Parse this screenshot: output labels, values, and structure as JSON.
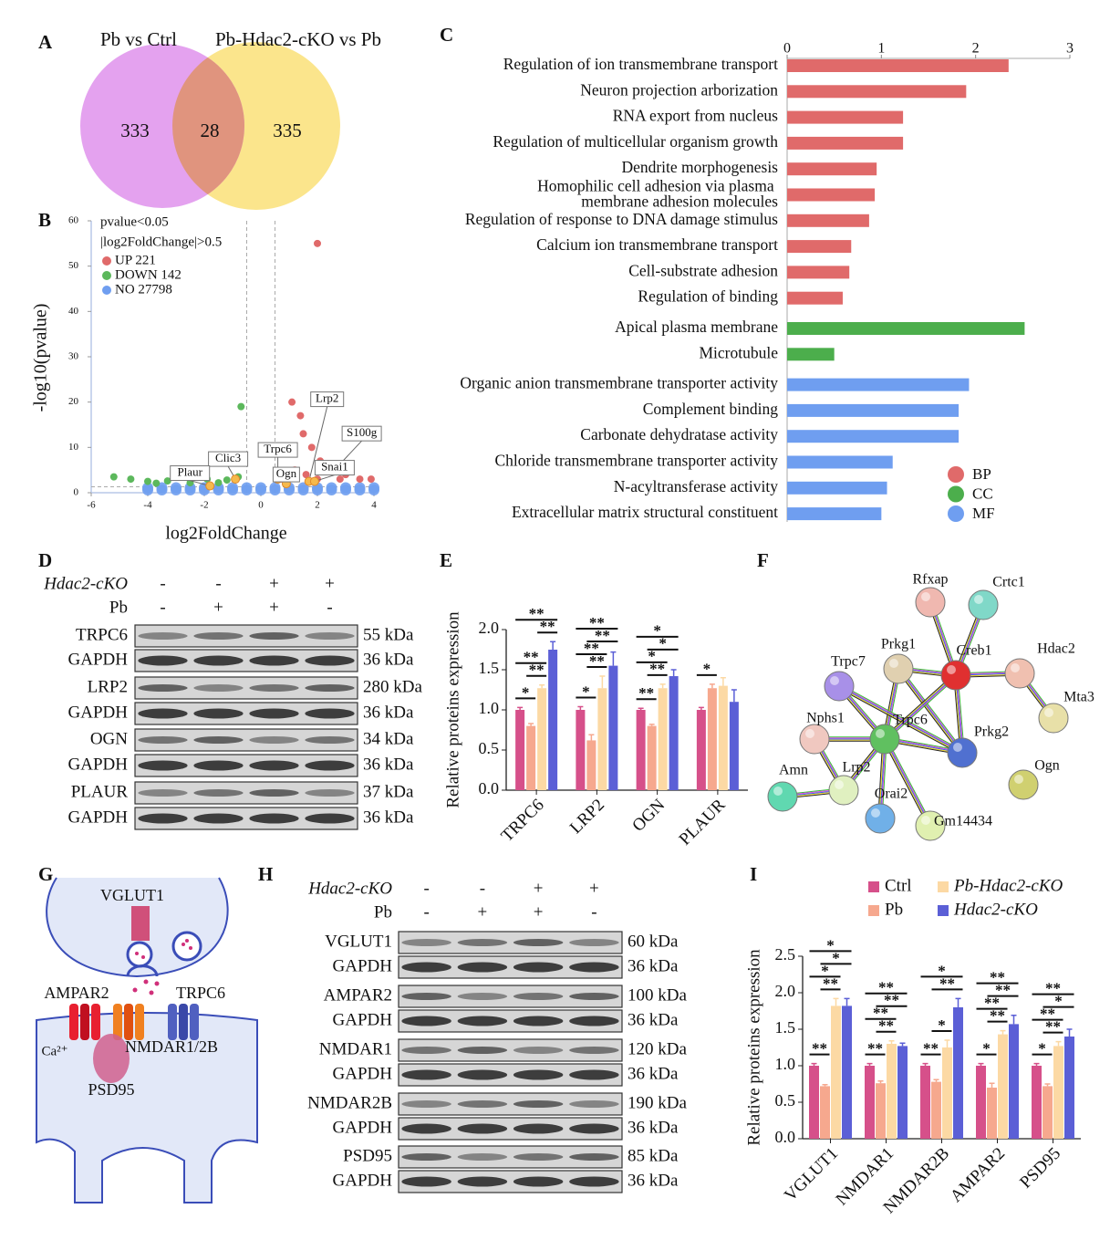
{
  "panel_labels": [
    "A",
    "B",
    "C",
    "D",
    "E",
    "F",
    "G",
    "H",
    "I"
  ],
  "venn": {
    "sets": [
      "Pb vs Ctrl",
      "Pb-Hdac2-cKO vs Pb"
    ],
    "counts": [
      333,
      28,
      335
    ]
  },
  "chart_data": [
    {
      "type": "scatter",
      "xlabel": "log2FoldChange",
      "ylabel": "-log10(pvalue)",
      "xlim": [
        -6,
        4
      ],
      "xticks": [
        -6,
        -4,
        -2,
        0,
        2,
        4
      ],
      "ylim": [
        0,
        60
      ],
      "yticks": [
        0,
        10,
        20,
        30,
        40,
        50,
        60
      ],
      "legend_title": [
        "pvalue<0.05",
        "|log2FoldChange|>0.5"
      ],
      "thresholds": {
        "x": [
          -0.5,
          0.5
        ],
        "y": 1.3
      },
      "series": [
        {
          "name": "UP 221",
          "color": "#e06a6a",
          "x": [
            2.0,
            1.1,
            1.4,
            1.5,
            1.8,
            1.1,
            2.1,
            2.5,
            3.0,
            1.2,
            0.9,
            3.5,
            3.9,
            2.0,
            1.6,
            2.8,
            0.7
          ],
          "y": [
            55,
            20,
            17,
            13,
            10,
            9,
            7,
            5,
            4,
            5,
            4,
            3,
            3,
            3,
            4,
            3,
            3
          ]
        },
        {
          "name": "DOWN 142",
          "color": "#5cb85c",
          "x": [
            -0.7,
            -5.2,
            -4.6,
            -4.0,
            -3.3,
            -2.5,
            -1.9,
            -1.2,
            -0.8,
            -1.5,
            -3.7
          ],
          "y": [
            19,
            3.5,
            3,
            2.5,
            2.6,
            2.2,
            3,
            2.8,
            3.5,
            2.2,
            2.1
          ]
        },
        {
          "name": "NO 27798",
          "color": "#6f9ef0",
          "x": [
            -4,
            -3.5,
            -3,
            -2.5,
            -2,
            -1.5,
            -1,
            -0.5,
            0,
            0.5,
            1,
            1.5,
            2,
            2.5,
            3,
            3.5,
            4,
            -4,
            -3.5,
            -3,
            -2.5,
            -2,
            -1.5,
            -1,
            -0.5,
            0,
            0.5,
            1,
            1.5,
            2,
            2.5,
            3,
            3.5,
            4
          ],
          "y": [
            0.6,
            0.6,
            0.6,
            0.6,
            0.6,
            0.6,
            0.6,
            0.6,
            0.6,
            0.6,
            0.6,
            0.6,
            0.6,
            0.6,
            0.6,
            0.6,
            0.6,
            1.1,
            1.1,
            1.1,
            1.1,
            1.1,
            1.1,
            1.1,
            1.1,
            1.1,
            1.1,
            1.1,
            1.1,
            1.1,
            1.1,
            1.1,
            1.1,
            1.1
          ]
        }
      ],
      "annotations": [
        {
          "text": "Lrp2",
          "x": 1.7,
          "y": 2.5
        },
        {
          "text": "S100g",
          "x": 2.6,
          "y": 5
        },
        {
          "text": "Snai1",
          "x": 1.9,
          "y": 2.5
        },
        {
          "text": "Trpc6",
          "x": 0.6,
          "y": 3
        },
        {
          "text": "Ogn",
          "x": 0.9,
          "y": 2
        },
        {
          "text": "Clic3",
          "x": -0.9,
          "y": 3
        },
        {
          "text": "Plaur",
          "x": -1.8,
          "y": 1.5
        }
      ]
    },
    {
      "type": "barh",
      "xlim": [
        0,
        3
      ],
      "xticks": [
        0,
        1,
        2,
        3
      ],
      "series": [
        {
          "name": "BP",
          "color": "#e06a6a",
          "categories": [
            "Regulation of ion transmembrane transport",
            "Neuron projection arborization",
            "RNA export from nucleus",
            "Regulation of multicellular organism growth",
            "Dendrite morphogenesis",
            "Homophilic cell adhesion via plasma membrane adhesion molecules",
            "Regulation of response to DNA damage stimulus",
            "Calcium ion transmembrane transport",
            "Cell-substrate adhesion",
            "Regulation of binding"
          ],
          "values": [
            2.35,
            1.9,
            1.23,
            1.23,
            0.95,
            0.93,
            0.87,
            0.68,
            0.66,
            0.59
          ]
        },
        {
          "name": "CC",
          "color": "#4cae4c",
          "categories": [
            "Apical plasma membrane",
            "Microtubule"
          ],
          "values": [
            2.52,
            0.5
          ]
        },
        {
          "name": "MF",
          "color": "#6f9ef0",
          "categories": [
            "Organic anion transmembrane transporter activity",
            "Complement binding",
            "Carbonate dehydratase activity",
            "Chloride transmembrane transporter activity",
            "N-acyltransferase activity",
            "Extracellular matrix structural constituent"
          ],
          "values": [
            1.93,
            1.82,
            1.82,
            1.12,
            1.06,
            1.0
          ]
        }
      ]
    },
    {
      "type": "bar",
      "ylabel": "Relative proteins expression",
      "categories": [
        "TRPC6",
        "LRP2",
        "OGN",
        "PLAUR"
      ],
      "ylim": [
        0,
        2
      ],
      "yticks": [
        {
          "value": 0,
          "label": "0.0"
        },
        0.5,
        {
          "value": 1,
          "label": "1.0"
        },
        1.5,
        {
          "value": 2,
          "label": "2.0"
        }
      ],
      "series": [
        {
          "name": "Ctrl",
          "color": "#d6508a",
          "values": [
            1.0,
            1.0,
            1.0,
            1.0
          ],
          "errors": [
            0.03,
            0.04,
            0.02,
            0.03
          ]
        },
        {
          "name": "Pb",
          "color": "#f6a88e",
          "values": [
            0.8,
            0.62,
            0.8,
            1.27
          ],
          "errors": [
            0.03,
            0.07,
            0.02,
            0.05
          ]
        },
        {
          "name": "Pb-Hdac2-cKO",
          "color": "#fcd9a4",
          "values": [
            1.27,
            1.27,
            1.27,
            1.3
          ],
          "errors": [
            0.04,
            0.15,
            0.05,
            0.1
          ]
        },
        {
          "name": "Hdac2-cKO",
          "color": "#5b5fd6",
          "values": [
            1.75,
            1.55,
            1.42,
            1.1
          ],
          "errors": [
            0.1,
            0.17,
            0.08,
            0.15
          ]
        }
      ],
      "significance": [
        [
          {
            "pair": [
              0,
              1
            ],
            "label": "*"
          },
          {
            "pair": [
              1,
              2
            ],
            "label": "**"
          },
          {
            "pair": [
              0,
              2
            ],
            "label": "**"
          },
          {
            "pair": [
              2,
              3
            ],
            "label": "**"
          },
          {
            "pair": [
              0,
              3
            ],
            "label": "**"
          }
        ],
        [
          {
            "pair": [
              0,
              1
            ],
            "label": "*"
          },
          {
            "pair": [
              1,
              2
            ],
            "label": "**"
          },
          {
            "pair": [
              0,
              2
            ],
            "label": "**"
          },
          {
            "pair": [
              1,
              3
            ],
            "label": "**"
          },
          {
            "pair": [
              0,
              3
            ],
            "label": "**"
          }
        ],
        [
          {
            "pair": [
              0,
              1
            ],
            "label": "**"
          },
          {
            "pair": [
              1,
              2
            ],
            "label": "**"
          },
          {
            "pair": [
              0,
              2
            ],
            "label": "*"
          },
          {
            "pair": [
              1,
              3
            ],
            "label": "*"
          },
          {
            "pair": [
              0,
              3
            ],
            "label": "*"
          }
        ],
        [
          {
            "pair": [
              0,
              1
            ],
            "label": "*"
          }
        ]
      ]
    },
    {
      "type": "bar",
      "ylabel": "Relative proteins expression",
      "categories": [
        "VGLUT1",
        "NMDAR1",
        "NMDAR2B",
        "AMPAR2",
        "PSD95"
      ],
      "ylim": [
        0,
        2.5
      ],
      "yticks": [
        {
          "value": 0,
          "label": "0.0"
        },
        0.5,
        {
          "value": 1,
          "label": "1.0"
        },
        1.5,
        {
          "value": 2,
          "label": "2.0"
        },
        2.5
      ],
      "series": [
        {
          "name": "Ctrl",
          "color": "#d6508a",
          "values": [
            1.0,
            1.0,
            1.0,
            1.0,
            1.0
          ],
          "errors": [
            0.03,
            0.03,
            0.03,
            0.03,
            0.03
          ]
        },
        {
          "name": "Pb",
          "color": "#f6a88e",
          "values": [
            0.72,
            0.76,
            0.78,
            0.7,
            0.72
          ],
          "errors": [
            0.02,
            0.03,
            0.03,
            0.06,
            0.03
          ]
        },
        {
          "name": "Pb-Hdac2-cKO",
          "color": "#fcd9a4",
          "values": [
            1.82,
            1.3,
            1.25,
            1.43,
            1.27
          ],
          "errors": [
            0.1,
            0.04,
            0.1,
            0.05,
            0.06
          ]
        },
        {
          "name": "Hdac2-cKO",
          "color": "#5b5fd6",
          "values": [
            1.82,
            1.27,
            1.8,
            1.57,
            1.4
          ],
          "errors": [
            0.1,
            0.04,
            0.12,
            0.12,
            0.1
          ]
        }
      ],
      "significance": [
        [
          {
            "pair": [
              0,
              1
            ],
            "label": "**"
          },
          {
            "pair": [
              1,
              2
            ],
            "label": "**"
          },
          {
            "pair": [
              0,
              2
            ],
            "label": "*"
          },
          {
            "pair": [
              1,
              3
            ],
            "label": "*"
          },
          {
            "pair": [
              0,
              3
            ],
            "label": "*"
          }
        ],
        [
          {
            "pair": [
              0,
              1
            ],
            "label": "**"
          },
          {
            "pair": [
              1,
              2
            ],
            "label": "**"
          },
          {
            "pair": [
              0,
              2
            ],
            "label": "**"
          },
          {
            "pair": [
              1,
              3
            ],
            "label": "**"
          },
          {
            "pair": [
              0,
              3
            ],
            "label": "**"
          }
        ],
        [
          {
            "pair": [
              0,
              1
            ],
            "label": "**"
          },
          {
            "pair": [
              1,
              2
            ],
            "label": "*"
          },
          {
            "pair": [
              1,
              3
            ],
            "label": "**"
          },
          {
            "pair": [
              0,
              3
            ],
            "label": "*"
          }
        ],
        [
          {
            "pair": [
              0,
              1
            ],
            "label": "*"
          },
          {
            "pair": [
              1,
              2
            ],
            "label": "**"
          },
          {
            "pair": [
              0,
              2
            ],
            "label": "**"
          },
          {
            "pair": [
              1,
              3
            ],
            "label": "**"
          },
          {
            "pair": [
              0,
              3
            ],
            "label": "**"
          }
        ],
        [
          {
            "pair": [
              0,
              1
            ],
            "label": "*"
          },
          {
            "pair": [
              1,
              2
            ],
            "label": "**"
          },
          {
            "pair": [
              0,
              2
            ],
            "label": "**"
          },
          {
            "pair": [
              1,
              3
            ],
            "label": "*"
          },
          {
            "pair": [
              0,
              3
            ],
            "label": "**"
          }
        ]
      ]
    }
  ],
  "blot_d": {
    "conditions": [
      {
        "name": "Hdac2-cKO",
        "signs": [
          "-",
          "-",
          "+",
          "+"
        ]
      },
      {
        "name": "Pb",
        "signs": [
          "-",
          "+",
          "+",
          "-"
        ]
      }
    ],
    "bands": [
      {
        "protein": "TRPC6",
        "size": "55 kDa"
      },
      {
        "protein": "GAPDH",
        "size": "36 kDa"
      },
      {
        "protein": "LRP2",
        "size": "280 kDa"
      },
      {
        "protein": "GAPDH",
        "size": "36 kDa"
      },
      {
        "protein": "OGN",
        "size": "34 kDa"
      },
      {
        "protein": "GAPDH",
        "size": "36 kDa"
      },
      {
        "protein": "PLAUR",
        "size": "37 kDa"
      },
      {
        "protein": "GAPDH",
        "size": "36 kDa"
      }
    ]
  },
  "blot_h": {
    "conditions": [
      {
        "name": "Hdac2-cKO",
        "signs": [
          "-",
          "-",
          "+",
          "+"
        ]
      },
      {
        "name": "Pb",
        "signs": [
          "-",
          "+",
          "+",
          "-"
        ]
      }
    ],
    "bands": [
      {
        "protein": "VGLUT1",
        "size": "60 kDa"
      },
      {
        "protein": "GAPDH",
        "size": "36 kDa"
      },
      {
        "protein": "AMPAR2",
        "size": "100 kDa"
      },
      {
        "protein": "GAPDH",
        "size": "36 kDa"
      },
      {
        "protein": "NMDAR1",
        "size": "120 kDa"
      },
      {
        "protein": "GAPDH",
        "size": "36 kDa"
      },
      {
        "protein": "NMDAR2B",
        "size": "190 kDa"
      },
      {
        "protein": "GAPDH",
        "size": "36 kDa"
      },
      {
        "protein": "PSD95",
        "size": "85 kDa"
      },
      {
        "protein": "GAPDH",
        "size": "36 kDa"
      }
    ]
  },
  "network": {
    "nodes": [
      "Rfxap",
      "Crtc1",
      "Prkg1",
      "Creb1",
      "Hdac2",
      "Mta3",
      "Trpc7",
      "Nphs1",
      "Trpc6",
      "Prkg2",
      "Amn",
      "Lrp2",
      "Orai2",
      "Gm14434",
      "Ogn"
    ]
  },
  "diagram": {
    "labels": [
      "VGLUT1",
      "AMPAR2",
      "TRPC6",
      "Ca²⁺",
      "NMDAR1/2B",
      "PSD95"
    ]
  }
}
